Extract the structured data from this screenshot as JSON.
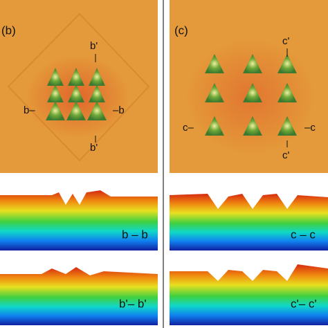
{
  "panels": [
    {
      "label": "(b)",
      "markers": [
        "b'",
        "b–",
        "–b",
        "b'"
      ],
      "profiles": [
        "b – b",
        "b'– b'"
      ]
    },
    {
      "label": "(c)",
      "markers": [
        "c'",
        "c–",
        "–c",
        "c'"
      ],
      "profiles": [
        "c – c",
        "c'– c'"
      ]
    }
  ]
}
